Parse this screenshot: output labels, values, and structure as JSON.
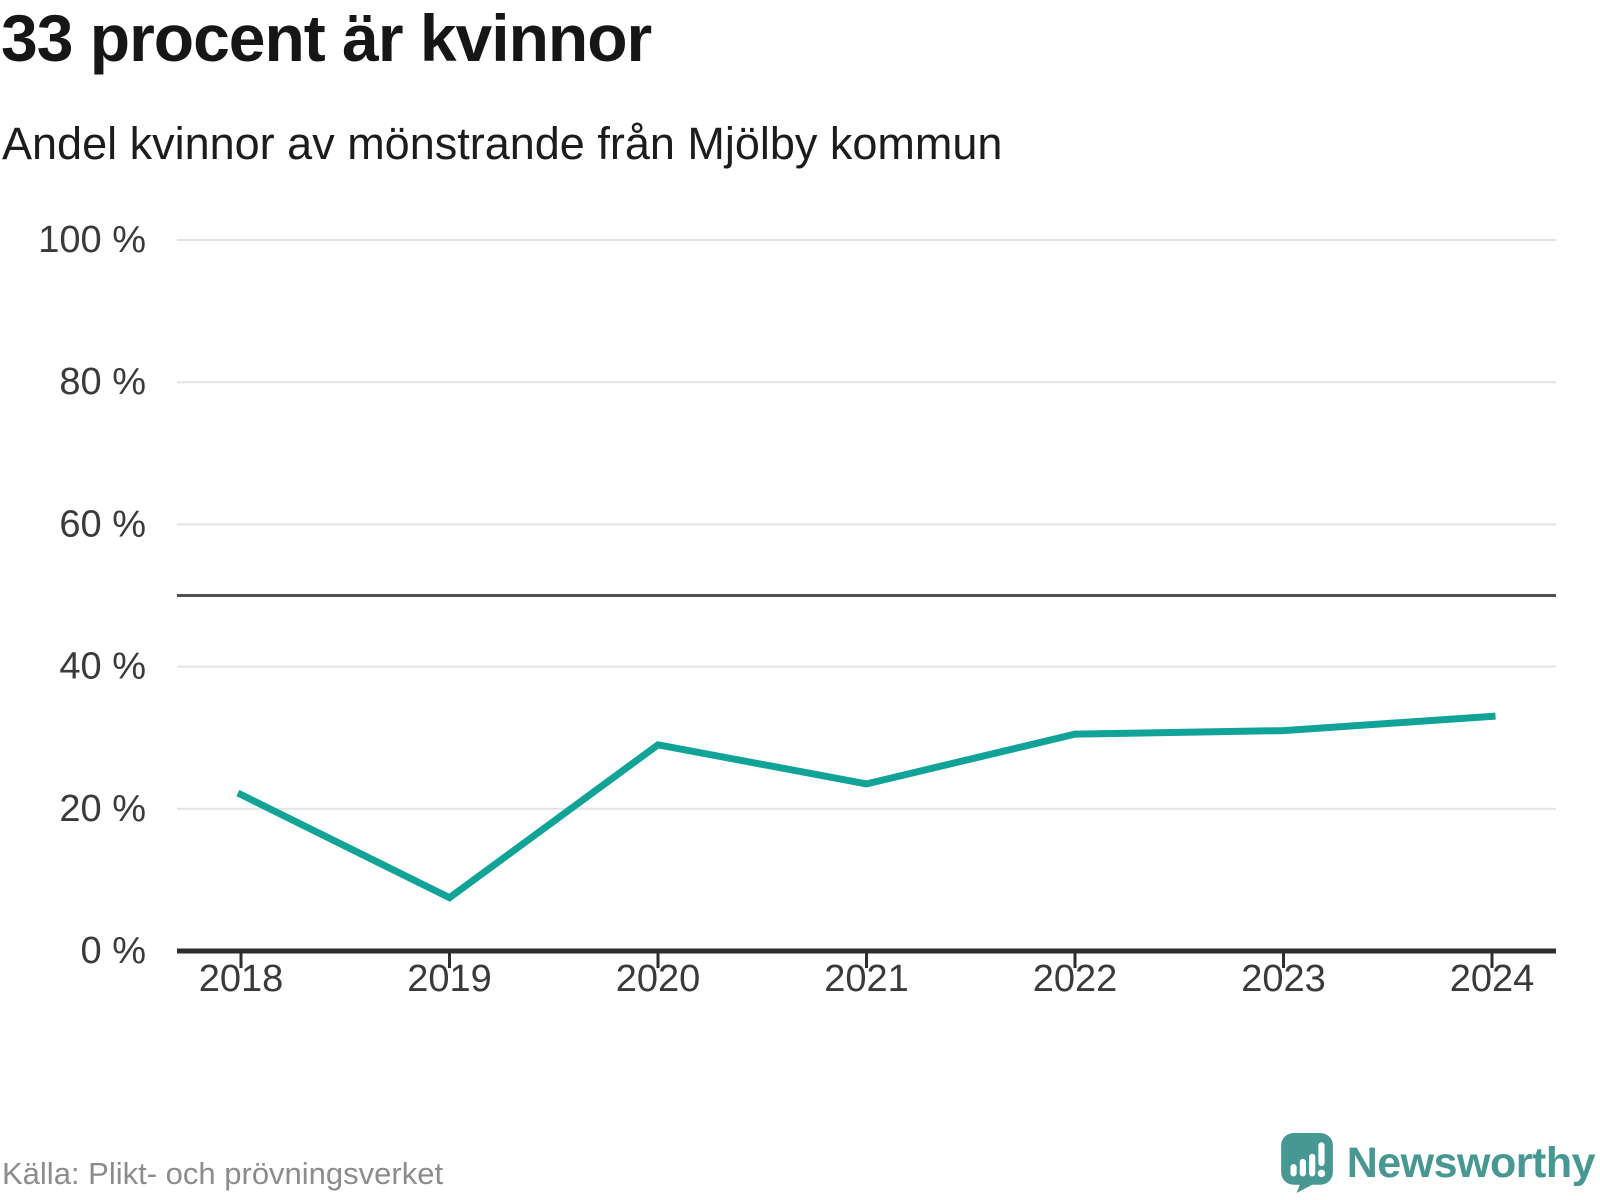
{
  "header": {
    "title": "33 procent är kvinnor",
    "subtitle": "Andel kvinnor av mönstrande från Mjölby kommun"
  },
  "footer": {
    "source": "Källa: Plikt- och prövningsverket",
    "brand": "Newsworthy"
  },
  "colors": {
    "line": "#12a398",
    "reference_line": "#4f4f4f",
    "grid": "#e3e3e3",
    "axis": "#2d2d2d",
    "tick_label": "#3a3a3a",
    "title_text": "#161616",
    "source_text": "#8c8c8c",
    "brand": "#479792"
  },
  "chart_data": {
    "type": "line",
    "title": "33 procent är kvinnor",
    "subtitle": "Andel kvinnor av mönstrande från Mjölby kommun",
    "x": [
      "2018",
      "2019",
      "2020",
      "2021",
      "2022",
      "2023",
      "2024"
    ],
    "series": [
      {
        "name": "Andel kvinnor av mönstrande",
        "values": [
          22,
          7.5,
          29,
          23.5,
          30.5,
          31,
          33
        ]
      }
    ],
    "unit": "%",
    "ylim": [
      0,
      100
    ],
    "y_ticks": [
      0,
      20,
      40,
      60,
      80,
      100
    ],
    "y_tick_suffix": " %",
    "y_tick_labels": [
      "0 %",
      "20 %",
      "40 %",
      "60 %",
      "80 %",
      "100 %"
    ],
    "reference_line": 50,
    "grid": "horizontal",
    "legend": "none",
    "line_style": "solid",
    "markers": "none"
  }
}
